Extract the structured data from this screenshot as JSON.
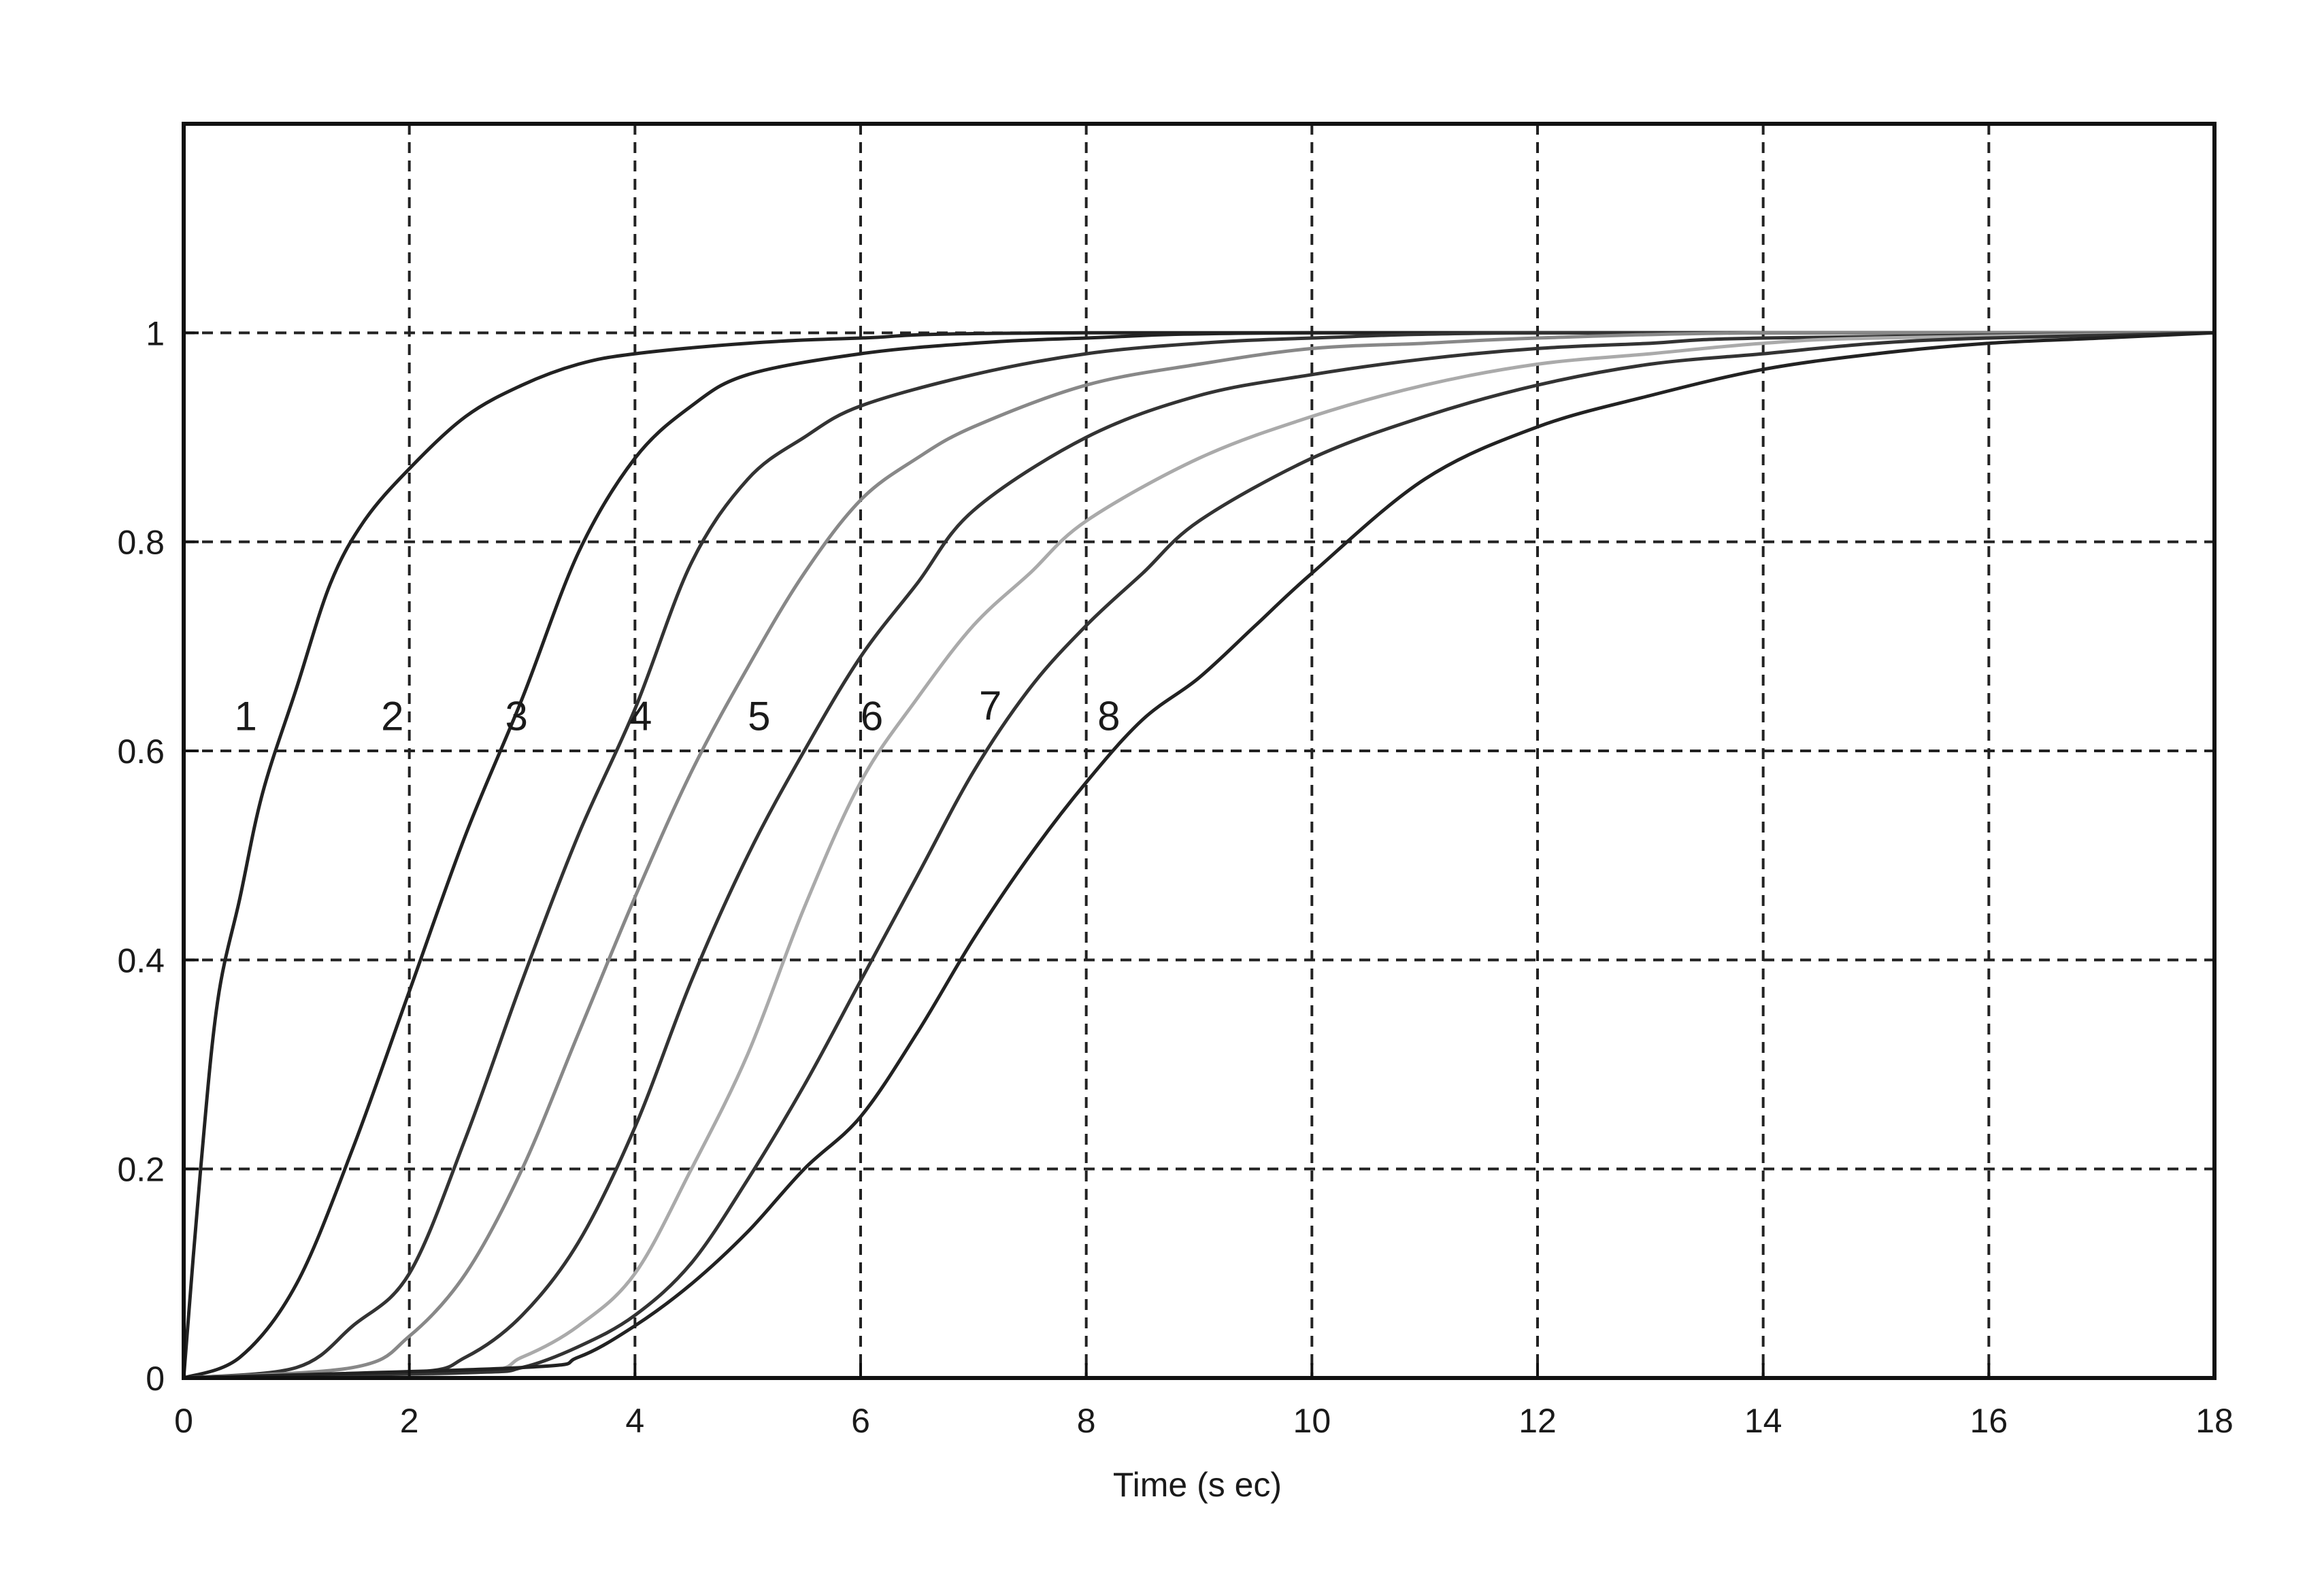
{
  "chart_data": {
    "type": "line",
    "title": "",
    "xlabel": "Time (s ec)",
    "ylabel": "",
    "xlim": [
      0,
      18
    ],
    "ylim": [
      0,
      1.2
    ],
    "grid": true,
    "x_ticks": [
      0,
      2,
      4,
      6,
      8,
      10,
      12,
      14,
      16,
      18
    ],
    "x_tick_labels": [
      "0",
      "2",
      "4",
      "6",
      "8",
      "10",
      "12",
      "14",
      "16",
      "18"
    ],
    "y_ticks": [
      0,
      0.2,
      0.4,
      0.6,
      0.8,
      1
    ],
    "y_tick_labels": [
      "0",
      "0.2",
      "0.4",
      "0.6",
      "0.8",
      "1"
    ],
    "series": [
      {
        "label": "1",
        "label_pos": [
          0.55,
          0.62
        ],
        "color": "#222222",
        "x": [
          0,
          0.15,
          0.3,
          0.5,
          0.7,
          1.0,
          1.3,
          1.6,
          2.0,
          2.5,
          3.0,
          3.5,
          4.0,
          5.0,
          6.0,
          8.0,
          18.0
        ],
        "y": [
          0,
          0.2,
          0.36,
          0.46,
          0.56,
          0.66,
          0.76,
          0.82,
          0.87,
          0.92,
          0.95,
          0.97,
          0.98,
          0.99,
          0.995,
          1.0,
          1.0
        ]
      },
      {
        "label": "2",
        "label_pos": [
          1.85,
          0.62
        ],
        "color": "#222222",
        "x": [
          0,
          0.5,
          1.0,
          1.5,
          2.0,
          2.5,
          3.0,
          3.5,
          4.0,
          4.5,
          5.0,
          6.0,
          7.0,
          8.0,
          10.0,
          18.0
        ],
        "y": [
          0,
          0.02,
          0.09,
          0.22,
          0.37,
          0.52,
          0.65,
          0.79,
          0.88,
          0.93,
          0.96,
          0.98,
          0.99,
          0.995,
          1.0,
          1.0
        ]
      },
      {
        "label": "3",
        "label_pos": [
          2.95,
          0.62
        ],
        "color": "#333333",
        "x": [
          0,
          1.0,
          1.5,
          2.0,
          2.5,
          3.0,
          3.5,
          4.0,
          4.5,
          5.0,
          5.5,
          6.0,
          7.0,
          8.0,
          9.0,
          10.0,
          12.0,
          18.0
        ],
        "y": [
          0,
          0.01,
          0.05,
          0.1,
          0.23,
          0.38,
          0.52,
          0.64,
          0.78,
          0.86,
          0.9,
          0.93,
          0.96,
          0.98,
          0.99,
          0.995,
          1.0,
          1.0
        ]
      },
      {
        "label": "4",
        "label_pos": [
          4.05,
          0.62
        ],
        "color": "#888888",
        "x": [
          0,
          1.5,
          2.0,
          2.5,
          3.0,
          3.5,
          4.0,
          4.5,
          5.0,
          5.5,
          6.0,
          6.5,
          7.0,
          8.0,
          9.0,
          10.0,
          11.0,
          12.0,
          14.0,
          18.0
        ],
        "y": [
          0,
          0.01,
          0.04,
          0.1,
          0.2,
          0.33,
          0.46,
          0.58,
          0.68,
          0.77,
          0.84,
          0.88,
          0.91,
          0.95,
          0.97,
          0.985,
          0.99,
          0.995,
          1.0,
          1.0
        ]
      },
      {
        "label": "5",
        "label_pos": [
          5.1,
          0.62
        ],
        "color": "#333333",
        "x": [
          0,
          2.0,
          2.5,
          3.0,
          3.5,
          4.0,
          4.5,
          5.0,
          5.5,
          6.0,
          6.5,
          7.0,
          8.0,
          9.0,
          10.0,
          11.0,
          12.0,
          13.0,
          14.0,
          18.0
        ],
        "y": [
          0,
          0.005,
          0.02,
          0.06,
          0.13,
          0.24,
          0.38,
          0.5,
          0.6,
          0.69,
          0.76,
          0.83,
          0.9,
          0.94,
          0.96,
          0.975,
          0.985,
          0.99,
          0.995,
          1.0
        ]
      },
      {
        "label": "6",
        "label_pos": [
          6.1,
          0.62
        ],
        "color": "#aaaaaa",
        "x": [
          0,
          2.5,
          3.0,
          3.5,
          4.0,
          4.5,
          5.0,
          5.5,
          6.0,
          6.5,
          7.0,
          7.5,
          8.0,
          9.0,
          10.0,
          11.0,
          12.0,
          13.0,
          14.0,
          15.0,
          18.0
        ],
        "y": [
          0,
          0.005,
          0.02,
          0.05,
          0.1,
          0.2,
          0.31,
          0.45,
          0.57,
          0.65,
          0.72,
          0.77,
          0.82,
          0.88,
          0.92,
          0.95,
          0.97,
          0.98,
          0.99,
          0.995,
          1.0
        ]
      },
      {
        "label": "7",
        "label_pos": [
          7.15,
          0.63
        ],
        "color": "#333333",
        "x": [
          0,
          2.5,
          3.0,
          3.5,
          4.0,
          4.5,
          5.0,
          5.5,
          6.0,
          6.5,
          7.0,
          7.5,
          8.0,
          8.5,
          9.0,
          10.0,
          11.0,
          12.0,
          13.0,
          14.0,
          15.0,
          16.0,
          18.0
        ],
        "y": [
          0,
          0.005,
          0.01,
          0.03,
          0.06,
          0.11,
          0.19,
          0.28,
          0.38,
          0.48,
          0.58,
          0.66,
          0.72,
          0.77,
          0.82,
          0.88,
          0.92,
          0.95,
          0.97,
          0.98,
          0.99,
          0.995,
          1.0
        ]
      },
      {
        "label": "8",
        "label_pos": [
          8.2,
          0.62
        ],
        "color": "#222222",
        "x": [
          0,
          3.0,
          3.5,
          4.0,
          4.5,
          5.0,
          5.5,
          6.0,
          6.5,
          7.0,
          7.5,
          8.0,
          8.5,
          9.0,
          9.5,
          10.0,
          11.0,
          12.0,
          13.0,
          14.0,
          15.0,
          16.0,
          17.0,
          18.0
        ],
        "y": [
          0,
          0.01,
          0.02,
          0.05,
          0.09,
          0.14,
          0.2,
          0.25,
          0.33,
          0.42,
          0.5,
          0.57,
          0.63,
          0.67,
          0.72,
          0.77,
          0.86,
          0.91,
          0.94,
          0.965,
          0.98,
          0.99,
          0.995,
          1.0
        ]
      }
    ]
  }
}
